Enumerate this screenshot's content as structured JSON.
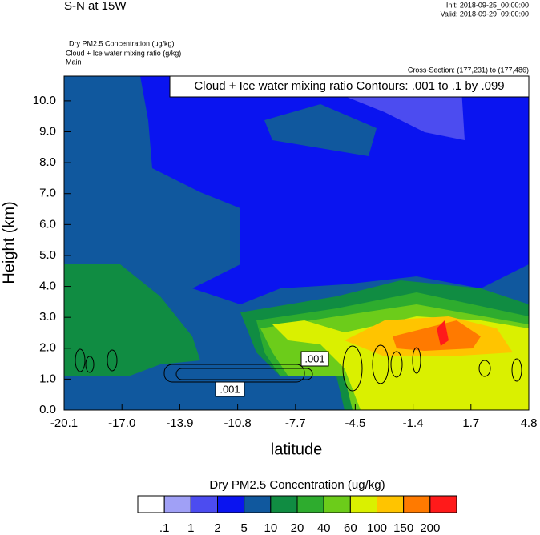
{
  "chart_data": {
    "type": "contour",
    "title": "S-N at 15W",
    "init": "Init: 2018-09-25_00:00:00",
    "valid": "Valid: 2018-09-29_09:00:00",
    "fields": [
      "Dry PM2.5 Concentration   (ug/kg)",
      "Cloud + Ice water mixing ratio   (g/kg)",
      "Main"
    ],
    "cross_section": "Cross-Section: (177,231) to (177,486)",
    "contour_note": "Cloud + Ice water mixing ratio Contours: .001 to .1 by .099",
    "contour_labels": [
      ".001",
      ".001"
    ],
    "x_label": "latitude",
    "y_label": "Height (km)",
    "xlim": [
      -20.1,
      4.8
    ],
    "xticks": [
      -20.1,
      {
        "value": -17,
        "label": "-17.0"
      },
      -13.9,
      -10.8,
      -7.7,
      -4.5,
      -1.4,
      1.7,
      4.8
    ],
    "ylim": [
      0,
      10.8
    ],
    "yticks": [
      {
        "value": 0,
        "label": "0.0"
      },
      {
        "value": 1,
        "label": "1.0"
      },
      {
        "value": 2,
        "label": "2.0"
      },
      {
        "value": 3,
        "label": "3.0"
      },
      {
        "value": 4,
        "label": "4.0"
      },
      {
        "value": 5,
        "label": "5.0"
      },
      {
        "value": 6,
        "label": "6.0"
      },
      {
        "value": 7,
        "label": "7.0"
      },
      {
        "value": 8,
        "label": "8.0"
      },
      {
        "value": 9,
        "label": "9.0"
      },
      {
        "value": 10,
        "label": "10.0"
      }
    ],
    "colorbar_title": "Dry PM2.5 Concentration  (ug/kg)",
    "levels": [
      {
        "value": 0.1,
        "label": ".1"
      },
      1,
      2,
      5,
      10,
      20,
      40,
      60,
      100,
      150,
      200
    ],
    "colors": [
      "#ffffff",
      "#a0a0f6",
      "#4c4cf0",
      "#0a14f0",
      "#10589e",
      "#108c42",
      "#2eac2e",
      "#6ccc1a",
      "#daf000",
      "#ffc400",
      "#ff7a00",
      "#ff1a1a"
    ]
  }
}
